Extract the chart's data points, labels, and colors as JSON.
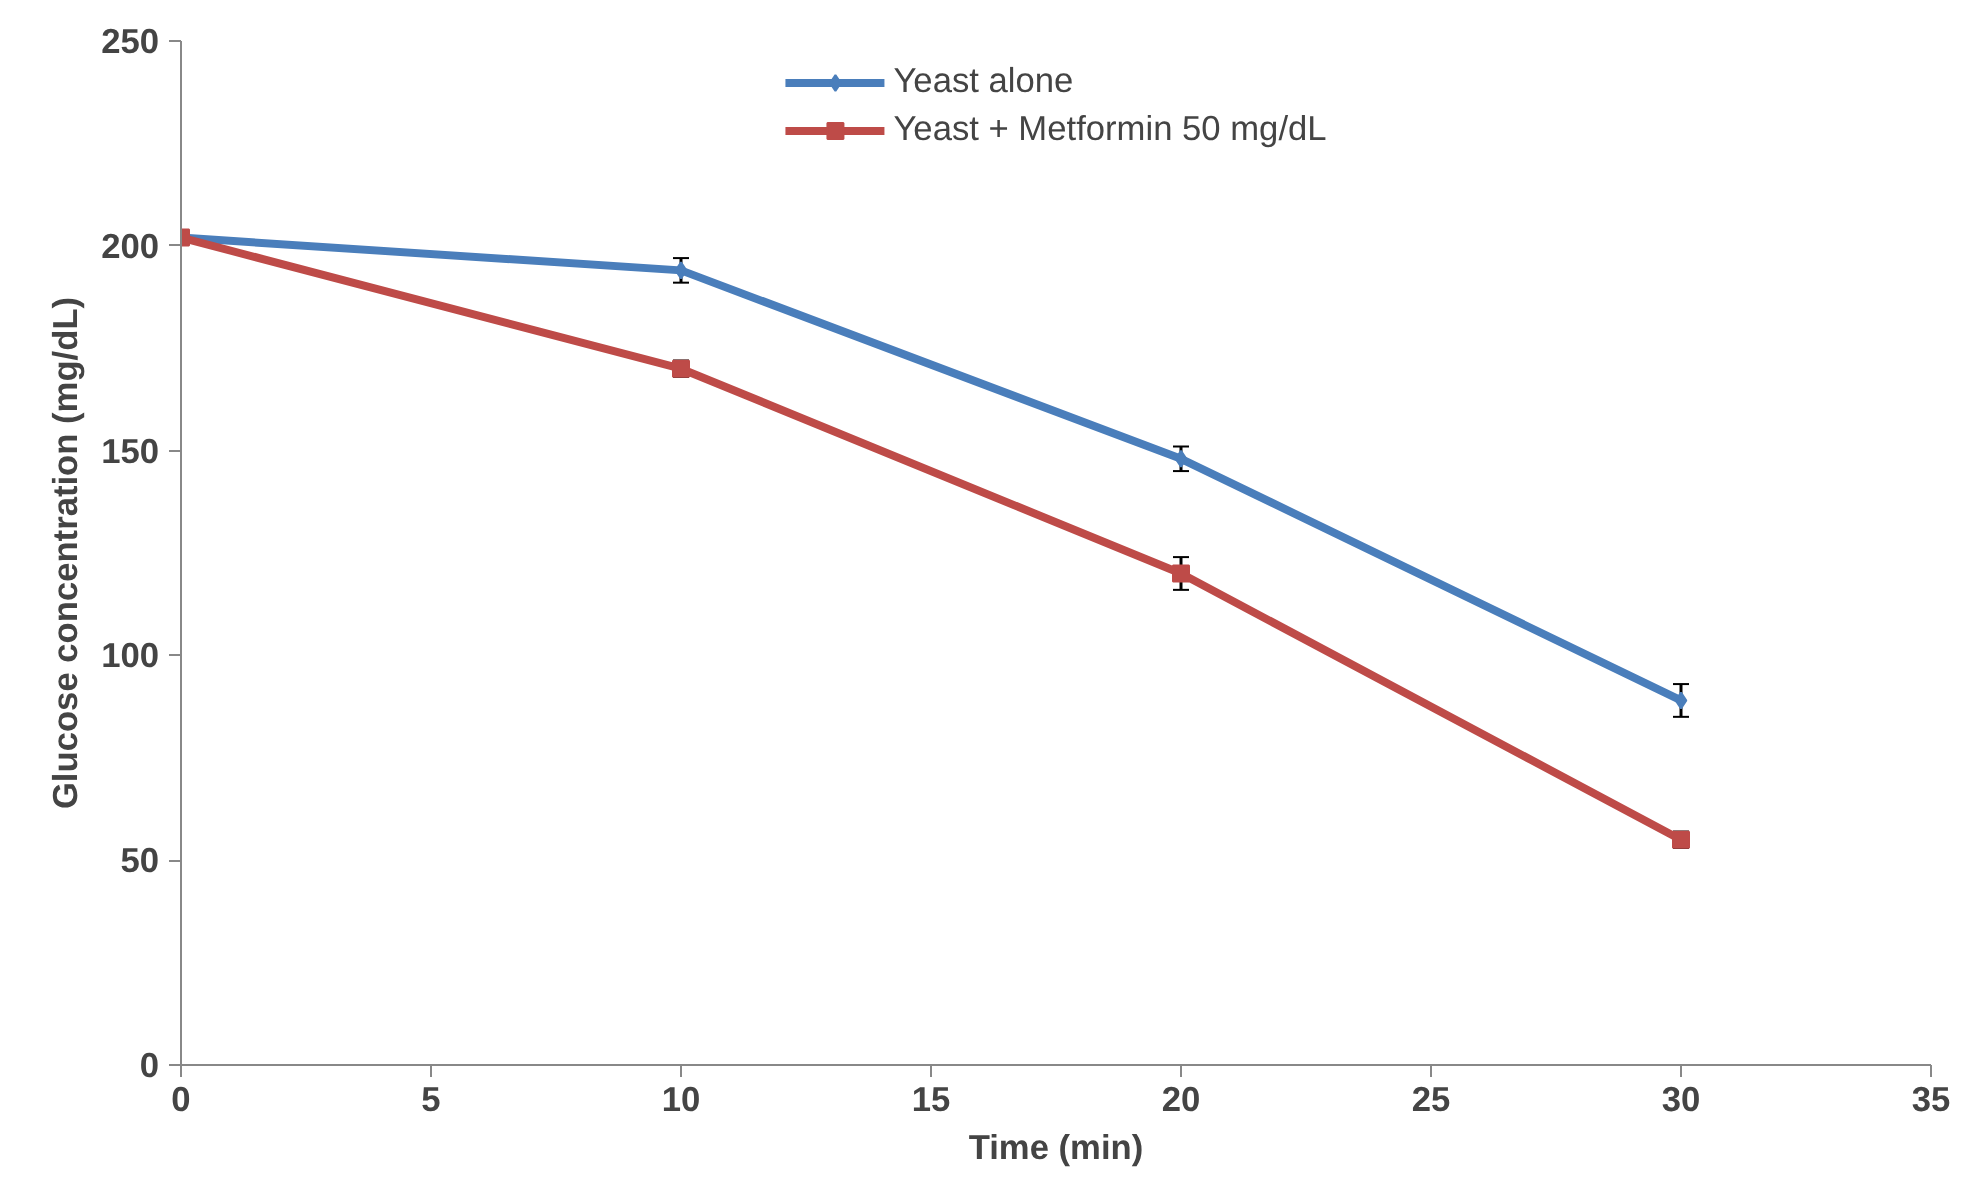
{
  "chart_data": {
    "type": "line",
    "xlabel": "Time (min)",
    "ylabel": "Glucose concentration (mg/dL)",
    "x": [
      0,
      10,
      20,
      30
    ],
    "series": [
      {
        "name": "Yeast alone",
        "color": "#4a7ebb",
        "values": [
          202,
          194,
          148,
          89
        ],
        "errors": [
          null,
          3,
          3,
          4
        ],
        "marker": "diamond"
      },
      {
        "name": "Yeast + Metformin 50 mg/dL",
        "color": "#be4b48",
        "values": [
          202,
          170,
          120,
          55
        ],
        "errors": [
          null,
          2,
          4,
          2
        ],
        "marker": "square"
      }
    ],
    "xlim": [
      0,
      35
    ],
    "xticks": [
      0,
      5,
      10,
      15,
      20,
      25,
      30,
      35
    ],
    "ylim": [
      0,
      250
    ],
    "yticks": [
      0,
      50,
      100,
      150,
      200,
      250
    ],
    "grid": false,
    "legend": "top",
    "line_style": "solid"
  }
}
